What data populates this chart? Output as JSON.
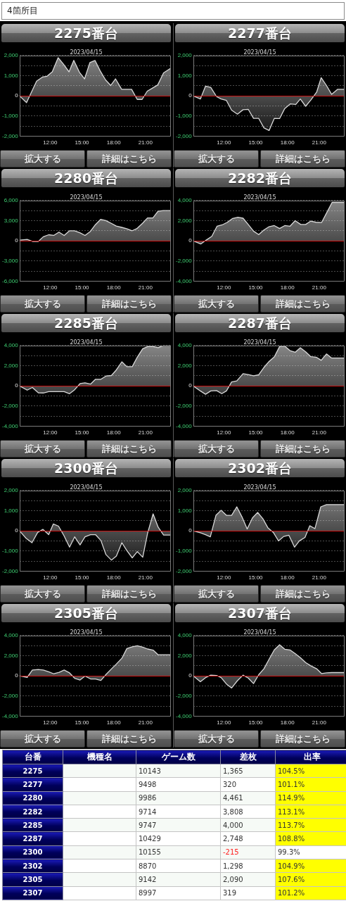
{
  "chart_data": [
    {
      "type": "other",
      "title": "4箇所目"
    },
    {
      "type": "area",
      "title": "2275番台",
      "subtitle": "2023/04/15",
      "color": "#d8d8d8",
      "x": [
        9.1,
        9.77,
        10.72,
        11.27,
        11.7,
        12.2,
        12.75,
        13.24,
        13.78,
        14.23,
        14.76,
        15.25,
        15.75,
        16.24,
        16.73,
        17.23,
        17.72,
        18.17,
        18.75,
        19.2,
        19.69,
        20.22,
        20.68,
        21.17,
        21.72,
        22.16,
        22.71,
        23.4
      ],
      "values": [
        0,
        -340,
        730,
        930,
        970,
        1190,
        1890,
        1580,
        1190,
        1760,
        1170,
        840,
        1650,
        1750,
        1230,
        790,
        510,
        840,
        320,
        320,
        320,
        -180,
        -180,
        230,
        400,
        540,
        1140,
        1370
      ],
      "xlim": [
        9.1,
        23.4
      ],
      "xticks": [
        {
          "value": 12,
          "label": "12:00"
        },
        {
          "value": 15,
          "label": "15:00"
        },
        {
          "value": 18,
          "label": "18:00"
        },
        {
          "value": 21,
          "label": "21:00"
        }
      ],
      "ylim": [
        -2000,
        2000
      ],
      "yticks": [
        {
          "value": -2000,
          "label": "-2,000"
        },
        {
          "value": -1500,
          "label": null
        },
        {
          "value": -1000,
          "label": "-1,000"
        },
        {
          "value": -500,
          "label": null
        },
        {
          "value": 0,
          "label": "0"
        },
        {
          "value": 500,
          "label": null
        },
        {
          "value": 1000,
          "label": "1,000"
        },
        {
          "value": 1500,
          "label": null
        },
        {
          "value": 2000,
          "label": "2,000"
        }
      ],
      "grid": "y",
      "ref_lines": [
        {
          "axis": "y",
          "value": 0,
          "color": "#cc1111"
        }
      ],
      "annotations": [
        "拡大する",
        "詳細はこちら"
      ]
    },
    {
      "type": "area",
      "title": "2277番台",
      "subtitle": "2023/04/15",
      "color": "#d8d8d8",
      "x": [
        9.1,
        9.78,
        10.27,
        10.76,
        11.31,
        11.74,
        12.24,
        12.73,
        13.28,
        13.81,
        14.3,
        14.8,
        15.29,
        15.78,
        16.27,
        16.76,
        17.26,
        17.75,
        18.28,
        18.79,
        19.22,
        19.72,
        20.21,
        20.76,
        21.19,
        21.69,
        22.18,
        22.73,
        23.4
      ],
      "values": [
        0,
        -160,
        480,
        420,
        -40,
        -160,
        -230,
        -710,
        -910,
        -690,
        -670,
        -1120,
        -1120,
        -1590,
        -1720,
        -1120,
        -1130,
        -630,
        -400,
        -430,
        -160,
        -520,
        -210,
        180,
        900,
        510,
        70,
        320,
        320
      ],
      "xlim": [
        9.1,
        23.4
      ],
      "xticks": [
        {
          "value": 12,
          "label": "12:00"
        },
        {
          "value": 15,
          "label": "15:00"
        },
        {
          "value": 18,
          "label": "18:00"
        },
        {
          "value": 21,
          "label": "21:00"
        }
      ],
      "ylim": [
        -2000,
        2000
      ],
      "yticks": [
        {
          "value": -2000,
          "label": "-2,000"
        },
        {
          "value": -1500,
          "label": null
        },
        {
          "value": -1000,
          "label": "-1,000"
        },
        {
          "value": -500,
          "label": null
        },
        {
          "value": 0,
          "label": "0"
        },
        {
          "value": 500,
          "label": null
        },
        {
          "value": 1000,
          "label": "1,000"
        },
        {
          "value": 1500,
          "label": null
        },
        {
          "value": 2000,
          "label": "2,000"
        }
      ],
      "grid": "y",
      "ref_lines": [
        {
          "axis": "y",
          "value": 0,
          "color": "#cc1111"
        }
      ],
      "annotations": [
        "拡大する",
        "詳細はこちら"
      ]
    },
    {
      "type": "area",
      "title": "2280番台",
      "subtitle": "2023/04/15",
      "color": "#d8d8d8",
      "x": [
        9.1,
        9.83,
        10.37,
        10.88,
        11.35,
        11.86,
        12.33,
        12.83,
        13.32,
        13.83,
        14.3,
        14.81,
        15.29,
        15.8,
        16.27,
        16.78,
        17.26,
        17.77,
        18.24,
        18.75,
        19.22,
        19.74,
        20.17,
        20.72,
        21.19,
        21.7,
        22.18,
        22.69,
        23.4
      ],
      "values": [
        100,
        200,
        -100,
        -100,
        600,
        900,
        800,
        1300,
        800,
        1500,
        1500,
        1200,
        800,
        1400,
        2400,
        3200,
        3000,
        2600,
        2200,
        2000,
        1800,
        1500,
        1800,
        2600,
        3400,
        3400,
        4400,
        4500,
        4500
      ],
      "xlim": [
        9.1,
        23.4
      ],
      "xticks": [
        {
          "value": 12,
          "label": "12:00"
        },
        {
          "value": 15,
          "label": "15:00"
        },
        {
          "value": 18,
          "label": "18:00"
        },
        {
          "value": 21,
          "label": "21:00"
        }
      ],
      "ylim": [
        -6000,
        6000
      ],
      "yticks": [
        {
          "value": -6000,
          "label": "-6,000"
        },
        {
          "value": -4500,
          "label": null
        },
        {
          "value": -3000,
          "label": "-3,000"
        },
        {
          "value": -1500,
          "label": null
        },
        {
          "value": 0,
          "label": "0"
        },
        {
          "value": 1500,
          "label": null
        },
        {
          "value": 3000,
          "label": "3,000"
        },
        {
          "value": 4500,
          "label": null
        },
        {
          "value": 6000,
          "label": "6,000"
        }
      ],
      "grid": "y",
      "ref_lines": [
        {
          "axis": "y",
          "value": 0,
          "color": "#cc1111"
        }
      ],
      "annotations": [
        "拡大する",
        "詳細はこちら"
      ]
    },
    {
      "type": "area",
      "title": "2282番台",
      "subtitle": "2023/04/15",
      "color": "#d8d8d8",
      "x": [
        9.1,
        9.83,
        10.33,
        10.86,
        11.35,
        11.84,
        12.33,
        12.83,
        13.32,
        13.81,
        14.3,
        14.8,
        15.29,
        15.78,
        16.27,
        16.76,
        17.26,
        17.75,
        18.24,
        18.73,
        19.26,
        19.72,
        20.21,
        20.7,
        21.23,
        21.74,
        22.22,
        22.73,
        23.4
      ],
      "values": [
        0,
        -310,
        70,
        440,
        1440,
        1580,
        1840,
        2220,
        2330,
        2240,
        1620,
        960,
        620,
        1070,
        1400,
        1510,
        1220,
        1510,
        1440,
        2000,
        1620,
        1620,
        1960,
        1840,
        1820,
        2840,
        3810,
        3810,
        3810
      ],
      "xlim": [
        9.1,
        23.4
      ],
      "xticks": [
        {
          "value": 12,
          "label": "12:00"
        },
        {
          "value": 15,
          "label": "15:00"
        },
        {
          "value": 18,
          "label": "18:00"
        },
        {
          "value": 21,
          "label": "21:00"
        }
      ],
      "ylim": [
        -4000,
        4000
      ],
      "yticks": [
        {
          "value": -4000,
          "label": "-4,000"
        },
        {
          "value": -3000,
          "label": null
        },
        {
          "value": -2000,
          "label": "-2,000"
        },
        {
          "value": -1000,
          "label": null
        },
        {
          "value": 0,
          "label": "0"
        },
        {
          "value": 1000,
          "label": null
        },
        {
          "value": 2000,
          "label": "2,000"
        },
        {
          "value": 3000,
          "label": null
        },
        {
          "value": 4000,
          "label": "4,000"
        }
      ],
      "grid": "y",
      "ref_lines": [
        {
          "axis": "y",
          "value": 0,
          "color": "#cc1111"
        }
      ],
      "annotations": [
        "拡大する",
        "詳細はこちら"
      ]
    },
    {
      "type": "area",
      "title": "2285番台",
      "subtitle": "2023/04/15",
      "color": "#d8d8d8",
      "x": [
        9.1,
        9.83,
        10.32,
        10.88,
        11.35,
        11.86,
        12.34,
        12.85,
        13.32,
        13.83,
        14.31,
        14.82,
        15.29,
        15.81,
        16.28,
        16.79,
        17.27,
        17.78,
        18.25,
        18.77,
        19.24,
        19.75,
        20.23,
        20.74,
        21.21,
        21.72,
        22.2,
        22.71,
        23.4
      ],
      "values": [
        0,
        -430,
        -170,
        -690,
        -710,
        -580,
        -580,
        -580,
        -580,
        -780,
        -390,
        220,
        300,
        170,
        650,
        650,
        970,
        1020,
        1580,
        2380,
        1900,
        1900,
        2850,
        3680,
        3890,
        3890,
        3780,
        4000,
        4000
      ],
      "xlim": [
        9.1,
        23.4
      ],
      "xticks": [
        {
          "value": 12,
          "label": "12:00"
        },
        {
          "value": 15,
          "label": "15:00"
        },
        {
          "value": 18,
          "label": "18:00"
        },
        {
          "value": 21,
          "label": "21:00"
        }
      ],
      "ylim": [
        -4000,
        4000
      ],
      "yticks": [
        {
          "value": -4000,
          "label": "-4,000"
        },
        {
          "value": -3000,
          "label": null
        },
        {
          "value": -2000,
          "label": "-2,000"
        },
        {
          "value": -1000,
          "label": null
        },
        {
          "value": 0,
          "label": "0"
        },
        {
          "value": 1000,
          "label": null
        },
        {
          "value": 2000,
          "label": "2,000"
        },
        {
          "value": 3000,
          "label": null
        },
        {
          "value": 4000,
          "label": "4,000"
        }
      ],
      "grid": "y",
      "ref_lines": [
        {
          "axis": "y",
          "value": 0,
          "color": "#cc1111"
        }
      ],
      "annotations": [
        "拡大する",
        "詳細はこちら"
      ]
    },
    {
      "type": "area",
      "title": "2287番台",
      "subtitle": "2023/04/15",
      "color": "#d8d8d8",
      "x": [
        9.1,
        9.78,
        10.27,
        10.76,
        11.31,
        11.8,
        12.24,
        12.73,
        13.22,
        13.81,
        14.3,
        14.8,
        15.29,
        15.78,
        16.27,
        16.76,
        17.26,
        17.75,
        18.24,
        18.73,
        19.22,
        19.72,
        20.21,
        20.76,
        21.19,
        21.69,
        22.18,
        22.73,
        23.4
      ],
      "values": [
        0,
        -510,
        -840,
        -510,
        -470,
        -780,
        -510,
        380,
        490,
        1200,
        1110,
        1000,
        1090,
        1820,
        2420,
        2870,
        3890,
        3930,
        3490,
        3330,
        3780,
        3380,
        2890,
        2820,
        2530,
        3160,
        2750,
        2750,
        2750
      ],
      "xlim": [
        9.1,
        23.4
      ],
      "xticks": [
        {
          "value": 12,
          "label": "12:00"
        },
        {
          "value": 15,
          "label": "15:00"
        },
        {
          "value": 18,
          "label": "18:00"
        },
        {
          "value": 21,
          "label": "21:00"
        }
      ],
      "ylim": [
        -4000,
        4000
      ],
      "yticks": [
        {
          "value": -4000,
          "label": "-4,000"
        },
        {
          "value": -3000,
          "label": null
        },
        {
          "value": -2000,
          "label": "-2,000"
        },
        {
          "value": -1000,
          "label": null
        },
        {
          "value": 0,
          "label": "0"
        },
        {
          "value": 1000,
          "label": null
        },
        {
          "value": 2000,
          "label": "2,000"
        },
        {
          "value": 3000,
          "label": null
        },
        {
          "value": 4000,
          "label": "4,000"
        }
      ],
      "grid": "y",
      "ref_lines": [
        {
          "axis": "y",
          "value": 0,
          "color": "#cc1111"
        }
      ],
      "annotations": [
        "拡大する",
        "詳細はこちら"
      ]
    },
    {
      "type": "area",
      "title": "2300番台",
      "subtitle": "2023/04/15",
      "color": "#d8d8d8",
      "x": [
        9.1,
        9.73,
        10.28,
        10.82,
        11.31,
        11.86,
        12.3,
        12.79,
        13.32,
        13.83,
        14.31,
        14.82,
        15.29,
        15.81,
        16.28,
        16.79,
        17.27,
        17.78,
        18.25,
        18.77,
        19.24,
        19.75,
        20.23,
        20.74,
        21.21,
        21.72,
        22.2,
        22.71,
        23.4
      ],
      "values": [
        0,
        -370,
        -590,
        -80,
        70,
        -190,
        340,
        230,
        -260,
        -810,
        -300,
        -700,
        -300,
        -190,
        -190,
        -480,
        -1180,
        -1450,
        -1250,
        -590,
        -980,
        -1340,
        -1030,
        -1310,
        -100,
        840,
        180,
        -210,
        -210
      ],
      "xlim": [
        9.1,
        23.4
      ],
      "xticks": [
        {
          "value": 12,
          "label": "12:00"
        },
        {
          "value": 15,
          "label": "15:00"
        },
        {
          "value": 18,
          "label": "18:00"
        },
        {
          "value": 21,
          "label": "21:00"
        }
      ],
      "ylim": [
        -2000,
        2000
      ],
      "yticks": [
        {
          "value": -2000,
          "label": "-2,000"
        },
        {
          "value": -1500,
          "label": null
        },
        {
          "value": -1000,
          "label": "-1,000"
        },
        {
          "value": -500,
          "label": null
        },
        {
          "value": 0,
          "label": "0"
        },
        {
          "value": 500,
          "label": null
        },
        {
          "value": 1000,
          "label": "1,000"
        },
        {
          "value": 1500,
          "label": null
        },
        {
          "value": 2000,
          "label": "2,000"
        }
      ],
      "grid": "y",
      "ref_lines": [
        {
          "axis": "y",
          "value": 0,
          "color": "#cc1111"
        }
      ],
      "annotations": [
        "拡大する",
        "詳細はこちら"
      ]
    },
    {
      "type": "area",
      "title": "2302番台",
      "subtitle": "2023/04/15",
      "color": "#d8d8d8",
      "x": [
        9.1,
        9.78,
        10.27,
        10.72,
        11.25,
        11.74,
        12.24,
        12.73,
        13.22,
        13.71,
        14.2,
        14.7,
        15.19,
        15.68,
        16.17,
        16.67,
        17.16,
        17.65,
        18.14,
        18.67,
        19.13,
        19.66,
        20.11,
        20.6,
        21.15,
        21.69,
        22.18,
        22.73,
        23.4
      ],
      "values": [
        0,
        -100,
        -190,
        -300,
        770,
        1020,
        770,
        770,
        1190,
        690,
        90,
        640,
        910,
        600,
        140,
        -80,
        -500,
        -280,
        -220,
        -810,
        -500,
        -330,
        250,
        110,
        1190,
        1300,
        1300,
        1300,
        1300
      ],
      "xlim": [
        9.1,
        23.4
      ],
      "xticks": [
        {
          "value": 12,
          "label": "12:00"
        },
        {
          "value": 15,
          "label": "15:00"
        },
        {
          "value": 18,
          "label": "18:00"
        },
        {
          "value": 21,
          "label": "21:00"
        }
      ],
      "ylim": [
        -2000,
        2000
      ],
      "yticks": [
        {
          "value": -2000,
          "label": "-2,000"
        },
        {
          "value": -1500,
          "label": null
        },
        {
          "value": -1000,
          "label": "-1,000"
        },
        {
          "value": -500,
          "label": null
        },
        {
          "value": 0,
          "label": "0"
        },
        {
          "value": 500,
          "label": null
        },
        {
          "value": 1000,
          "label": "1,000"
        },
        {
          "value": 1500,
          "label": null
        },
        {
          "value": 2000,
          "label": "2,000"
        }
      ],
      "grid": "y",
      "ref_lines": [
        {
          "axis": "y",
          "value": 0,
          "color": "#cc1111"
        }
      ],
      "annotations": [
        "拡大する",
        "詳細はこちら"
      ]
    },
    {
      "type": "area",
      "title": "2305番台",
      "subtitle": "2023/04/15",
      "color": "#d8d8d8",
      "x": [
        9.1,
        9.83,
        10.32,
        10.88,
        11.35,
        11.86,
        12.34,
        12.85,
        13.32,
        13.83,
        14.31,
        14.82,
        15.29,
        15.81,
        16.28,
        16.79,
        17.27,
        17.78,
        18.25,
        18.77,
        19.24,
        19.75,
        20.23,
        20.74,
        21.21,
        21.72,
        22.2,
        22.71,
        23.4
      ],
      "values": [
        0,
        -150,
        570,
        620,
        570,
        400,
        200,
        350,
        570,
        290,
        -240,
        -420,
        -20,
        -310,
        -310,
        -460,
        130,
        680,
        1170,
        1740,
        2700,
        2880,
        2990,
        2840,
        2660,
        2550,
        2090,
        2090,
        2090
      ],
      "xlim": [
        9.1,
        23.4
      ],
      "xticks": [
        {
          "value": 12,
          "label": "12:00"
        },
        {
          "value": 15,
          "label": "15:00"
        },
        {
          "value": 18,
          "label": "18:00"
        },
        {
          "value": 21,
          "label": "21:00"
        }
      ],
      "ylim": [
        -4000,
        4000
      ],
      "yticks": [
        {
          "value": -4000,
          "label": "-4,000"
        },
        {
          "value": -3000,
          "label": null
        },
        {
          "value": -2000,
          "label": "-2,000"
        },
        {
          "value": -1000,
          "label": null
        },
        {
          "value": 0,
          "label": "0"
        },
        {
          "value": 1000,
          "label": null
        },
        {
          "value": 2000,
          "label": "2,000"
        },
        {
          "value": 3000,
          "label": null
        },
        {
          "value": 4000,
          "label": "4,000"
        }
      ],
      "grid": "y",
      "ref_lines": [
        {
          "axis": "y",
          "value": 0,
          "color": "#cc1111"
        }
      ],
      "annotations": [
        "拡大する",
        "詳細はこちら"
      ]
    },
    {
      "type": "area",
      "title": "2307番台",
      "subtitle": "2023/04/15",
      "color": "#d8d8d8",
      "x": [
        9.1,
        9.78,
        10.27,
        10.76,
        11.31,
        11.74,
        12.24,
        12.73,
        13.28,
        13.81,
        14.3,
        14.8,
        15.29,
        15.78,
        16.27,
        16.76,
        17.26,
        17.75,
        18.24,
        18.73,
        19.22,
        19.72,
        20.21,
        20.76,
        21.23,
        21.69,
        22.18,
        22.73,
        23.4
      ],
      "values": [
        0,
        -590,
        -180,
        70,
        40,
        -180,
        -810,
        -1210,
        -480,
        70,
        -220,
        -770,
        110,
        700,
        1650,
        2570,
        3080,
        2640,
        2570,
        2200,
        1800,
        1320,
        990,
        700,
        220,
        290,
        320,
        320,
        320
      ],
      "xlim": [
        9.1,
        23.4
      ],
      "xticks": [
        {
          "value": 12,
          "label": "12:00"
        },
        {
          "value": 15,
          "label": "15:00"
        },
        {
          "value": 18,
          "label": "18:00"
        },
        {
          "value": 21,
          "label": "21:00"
        }
      ],
      "ylim": [
        -4000,
        4000
      ],
      "yticks": [
        {
          "value": -4000,
          "label": "-4,000"
        },
        {
          "value": -3000,
          "label": null
        },
        {
          "value": -2000,
          "label": "-2,000"
        },
        {
          "value": -1000,
          "label": null
        },
        {
          "value": 0,
          "label": "0"
        },
        {
          "value": 1000,
          "label": null
        },
        {
          "value": 2000,
          "label": "2,000"
        },
        {
          "value": 3000,
          "label": null
        },
        {
          "value": 4000,
          "label": "4,000"
        }
      ],
      "grid": "y",
      "ref_lines": [
        {
          "axis": "y",
          "value": 0,
          "color": "#cc1111"
        }
      ],
      "annotations": [
        "拡大する",
        "詳細はこちら"
      ]
    },
    {
      "type": "heatmap",
      "ylabel": "台番",
      "categories": [
        "機種名",
        "ゲーム数",
        "差枚",
        "出率"
      ],
      "y_categories": [
        "2275",
        "2277",
        "2280",
        "2282",
        "2285",
        "2287",
        "2300",
        "2302",
        "2305",
        "2307"
      ],
      "cells": [
        [
          null,
          10143,
          1365,
          104.5
        ],
        [
          null,
          9498,
          320,
          101.1
        ],
        [
          null,
          9986,
          4461,
          114.9
        ],
        [
          null,
          9714,
          3808,
          113.1
        ],
        [
          null,
          9747,
          4000,
          113.7
        ],
        [
          null,
          10429,
          2748,
          108.8
        ],
        [
          null,
          10155,
          -215,
          99.3
        ],
        [
          null,
          8870,
          1298,
          104.9
        ],
        [
          null,
          9142,
          2090,
          107.6
        ],
        [
          null,
          8997,
          319,
          101.2
        ]
      ],
      "cell_labels": [
        [
          null,
          "10143",
          "1,365",
          "104.5%"
        ],
        [
          null,
          "9498",
          "320",
          "101.1%"
        ],
        [
          null,
          "9986",
          "4,461",
          "114.9%"
        ],
        [
          null,
          "9714",
          "3,808",
          "113.1%"
        ],
        [
          null,
          "9747",
          "4,000",
          "113.7%"
        ],
        [
          null,
          "10429",
          "2,748",
          "108.8%"
        ],
        [
          null,
          "10155",
          "-215",
          "99.3%"
        ],
        [
          null,
          "8870",
          "1,298",
          "104.9%"
        ],
        [
          null,
          "9142",
          "2,090",
          "107.6%"
        ],
        [
          null,
          "8997",
          "319",
          "101.2%"
        ]
      ],
      "colors": [
        [
          "#f6faf6",
          "#f6faf6",
          "#f6faf6",
          "#ffff00"
        ],
        [
          "#ffffff",
          "#ffffff",
          "#ffffff",
          "#ffff00"
        ],
        [
          "#f6faf6",
          "#f6faf6",
          "#f6faf6",
          "#ffff00"
        ],
        [
          "#ffffff",
          "#ffffff",
          "#ffffff",
          "#ffff00"
        ],
        [
          "#f6faf6",
          "#f6faf6",
          "#f6faf6",
          "#ffff00"
        ],
        [
          "#ffffff",
          "#ffffff",
          "#ffffff",
          "#ffff00"
        ],
        [
          "#f6faf6",
          "#f6faf6",
          "#f6faf6",
          "#ffffff"
        ],
        [
          "#ffffff",
          "#ffffff",
          "#ffffff",
          "#ffff00"
        ],
        [
          "#f6faf6",
          "#f6faf6",
          "#f6faf6",
          "#ffff00"
        ],
        [
          "#ffffff",
          "#ffffff",
          "#ffffff",
          "#ffff00"
        ]
      ]
    }
  ]
}
